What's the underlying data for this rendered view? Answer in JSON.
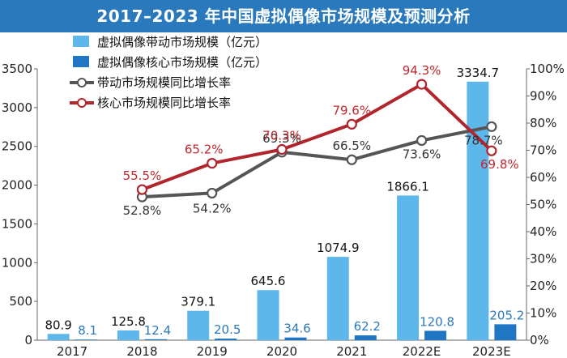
{
  "title": "2017–2023 年中国虚拟偶像市场规模及预测分析",
  "colors": {
    "title_bg": "#2a79bd",
    "brand_bar": "#5eb7ea",
    "core_bar": "#1f77c4",
    "brand_line": "#555555",
    "core_line": "#b1262d",
    "core_label": "#2a79bd",
    "core_pct_label": "#c1272d"
  },
  "chart_data": {
    "type": "bar",
    "categories": [
      "2017",
      "2018",
      "2019",
      "2020",
      "2021",
      "2022E",
      "2023E"
    ],
    "series": [
      {
        "name": "虚拟偶像带动市场规模（亿元）",
        "type": "bar",
        "axis": "left",
        "values": [
          80.9,
          125.8,
          379.1,
          645.6,
          1074.9,
          1866.1,
          3334.7
        ]
      },
      {
        "name": "虚拟偶像核心市场规模（亿元）",
        "type": "bar",
        "axis": "left",
        "values": [
          8.1,
          12.4,
          20.5,
          34.6,
          62.2,
          120.8,
          205.2
        ]
      },
      {
        "name": "带动市场规模同比增长率",
        "type": "line",
        "axis": "right",
        "values": [
          null,
          52.8,
          54.2,
          69.3,
          66.5,
          73.6,
          78.7
        ]
      },
      {
        "name": "核心市场规模同比增长率",
        "type": "line",
        "axis": "right",
        "values": [
          null,
          55.5,
          65.2,
          70.3,
          79.6,
          94.3,
          69.8
        ]
      }
    ],
    "brand_labels": [
      "80.9",
      "125.8",
      "379.1",
      "645.6",
      "1074.9",
      "1866.1",
      "3334.7"
    ],
    "core_labels": [
      "8.1",
      "12.4",
      "20.5",
      "34.6",
      "62.2",
      "120.8",
      "205.2"
    ],
    "brand_rate_labels": [
      "",
      "52.8%",
      "54.2%",
      "69.3%",
      "66.5%",
      "73.6%",
      "78.7%"
    ],
    "core_rate_labels": [
      "",
      "55.5%",
      "65.2%",
      "70.3%",
      "79.6%",
      "94.3%",
      "69.8%"
    ],
    "ylim_left": [
      0,
      3500
    ],
    "yticks_left": [
      "0",
      "500",
      "1000",
      "1500",
      "2000",
      "2500",
      "3000",
      "3500"
    ],
    "ylim_right": [
      0,
      100
    ],
    "yticks_right": [
      "0%",
      "10%",
      "20%",
      "30%",
      "40%",
      "50%",
      "60%",
      "70%",
      "80%",
      "90%",
      "100%"
    ],
    "legend_position": "top-left",
    "grid": false
  }
}
